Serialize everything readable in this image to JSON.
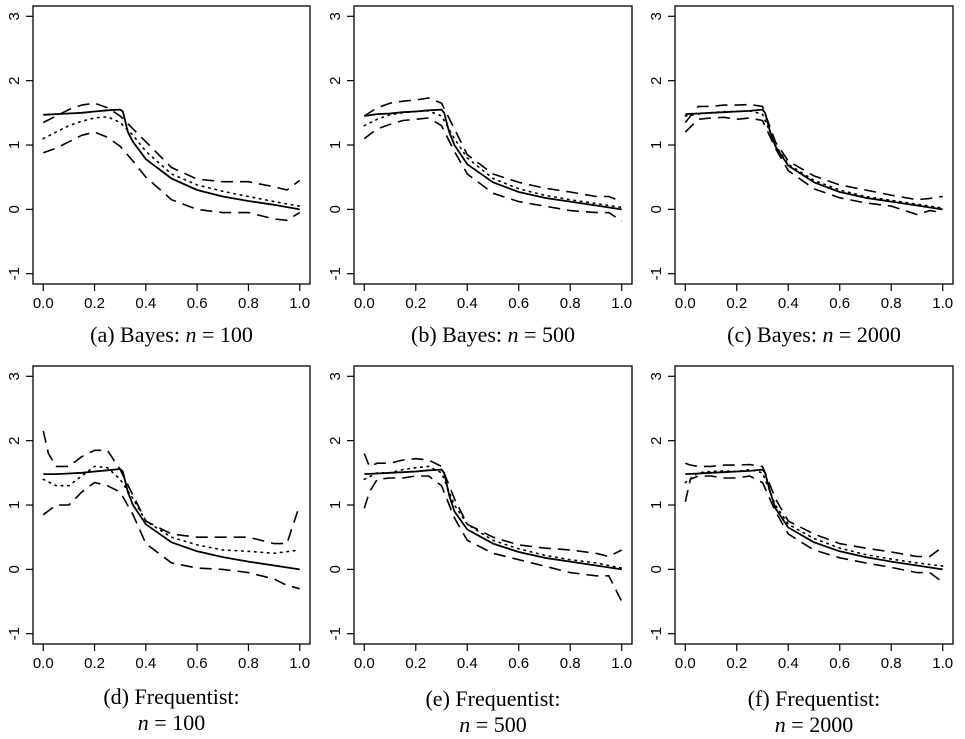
{
  "chart_data": [
    {
      "type": "line",
      "panel": "a",
      "caption_lines": [
        [
          "(a) Bayes: ",
          "n",
          " = 100"
        ]
      ],
      "xlim": [
        0,
        1
      ],
      "ylim": [
        -1,
        3
      ],
      "xticks": [
        "0.0",
        "0.2",
        "0.4",
        "0.6",
        "0.8",
        "1.0"
      ],
      "yticks": [
        "-1",
        "0",
        "1",
        "2",
        "3"
      ],
      "series": [
        {
          "style": "solid",
          "x": [
            0,
            0.05,
            0.1,
            0.15,
            0.2,
            0.25,
            0.3,
            0.31,
            0.33,
            0.35,
            0.4,
            0.5,
            0.6,
            0.7,
            0.8,
            0.9,
            1.0
          ],
          "y": [
            1.47,
            1.48,
            1.49,
            1.5,
            1.52,
            1.54,
            1.55,
            1.52,
            1.2,
            1.05,
            0.78,
            0.48,
            0.3,
            0.2,
            0.13,
            0.07,
            0.0
          ]
        },
        {
          "style": "dotted",
          "x": [
            0,
            0.05,
            0.1,
            0.15,
            0.2,
            0.25,
            0.3,
            0.35,
            0.4,
            0.5,
            0.6,
            0.7,
            0.8,
            0.9,
            1.0
          ],
          "y": [
            1.1,
            1.2,
            1.3,
            1.37,
            1.42,
            1.44,
            1.35,
            1.15,
            0.9,
            0.55,
            0.38,
            0.28,
            0.2,
            0.12,
            0.05
          ]
        },
        {
          "style": "dashed",
          "x": [
            0,
            0.05,
            0.1,
            0.15,
            0.2,
            0.25,
            0.3,
            0.35,
            0.4,
            0.5,
            0.6,
            0.7,
            0.8,
            0.9,
            0.95,
            1.0
          ],
          "y": [
            1.35,
            1.45,
            1.55,
            1.62,
            1.65,
            1.58,
            1.45,
            1.25,
            1.05,
            0.65,
            0.47,
            0.43,
            0.43,
            0.35,
            0.3,
            0.45
          ]
        },
        {
          "style": "dashed",
          "x": [
            0,
            0.05,
            0.1,
            0.15,
            0.2,
            0.25,
            0.3,
            0.35,
            0.4,
            0.5,
            0.6,
            0.7,
            0.8,
            0.9,
            0.95,
            1.0
          ],
          "y": [
            0.88,
            0.95,
            1.05,
            1.15,
            1.2,
            1.12,
            0.98,
            0.75,
            0.5,
            0.15,
            0.0,
            -0.05,
            -0.05,
            -0.15,
            -0.17,
            -0.05
          ]
        }
      ]
    },
    {
      "type": "line",
      "panel": "b",
      "caption_lines": [
        [
          "(b) Bayes: ",
          "n",
          " = 500"
        ]
      ],
      "xlim": [
        0,
        1
      ],
      "ylim": [
        -1,
        3
      ],
      "xticks": [
        "0.0",
        "0.2",
        "0.4",
        "0.6",
        "0.8",
        "1.0"
      ],
      "yticks": [
        "-1",
        "0",
        "1",
        "2",
        "3"
      ],
      "series": [
        {
          "style": "solid",
          "x": [
            0,
            0.05,
            0.1,
            0.15,
            0.2,
            0.25,
            0.3,
            0.31,
            0.33,
            0.35,
            0.4,
            0.5,
            0.6,
            0.7,
            0.8,
            0.9,
            1.0
          ],
          "y": [
            1.45,
            1.48,
            1.49,
            1.51,
            1.52,
            1.54,
            1.55,
            1.5,
            1.2,
            1.0,
            0.7,
            0.42,
            0.27,
            0.18,
            0.12,
            0.06,
            0.0
          ]
        },
        {
          "style": "dotted",
          "x": [
            0,
            0.05,
            0.1,
            0.15,
            0.2,
            0.25,
            0.3,
            0.35,
            0.4,
            0.5,
            0.6,
            0.7,
            0.8,
            0.9,
            1.0
          ],
          "y": [
            1.3,
            1.4,
            1.47,
            1.5,
            1.52,
            1.53,
            1.45,
            1.1,
            0.8,
            0.48,
            0.32,
            0.22,
            0.15,
            0.09,
            0.03
          ]
        },
        {
          "style": "dashed",
          "x": [
            0,
            0.05,
            0.1,
            0.15,
            0.2,
            0.25,
            0.3,
            0.35,
            0.4,
            0.5,
            0.6,
            0.7,
            0.8,
            0.9,
            0.95,
            1.0
          ],
          "y": [
            1.45,
            1.58,
            1.65,
            1.68,
            1.7,
            1.73,
            1.65,
            1.25,
            0.85,
            0.55,
            0.42,
            0.33,
            0.27,
            0.2,
            0.2,
            0.12
          ]
        },
        {
          "style": "dashed",
          "x": [
            0,
            0.05,
            0.1,
            0.15,
            0.2,
            0.25,
            0.3,
            0.35,
            0.4,
            0.5,
            0.6,
            0.7,
            0.8,
            0.9,
            0.95,
            1.0
          ],
          "y": [
            1.1,
            1.25,
            1.32,
            1.38,
            1.4,
            1.42,
            1.3,
            0.9,
            0.55,
            0.25,
            0.12,
            0.05,
            -0.02,
            -0.05,
            -0.05,
            -0.18
          ]
        }
      ]
    },
    {
      "type": "line",
      "panel": "c",
      "caption_lines": [
        [
          "(c) Bayes: ",
          "n",
          " = 2000"
        ]
      ],
      "xlim": [
        0,
        1
      ],
      "ylim": [
        -1,
        3
      ],
      "xticks": [
        "0.0",
        "0.2",
        "0.4",
        "0.6",
        "0.8",
        "1.0"
      ],
      "yticks": [
        "-1",
        "0",
        "1",
        "2",
        "3"
      ],
      "series": [
        {
          "style": "solid",
          "x": [
            0,
            0.05,
            0.1,
            0.15,
            0.2,
            0.25,
            0.3,
            0.31,
            0.33,
            0.35,
            0.4,
            0.5,
            0.6,
            0.7,
            0.8,
            0.9,
            1.0
          ],
          "y": [
            1.48,
            1.49,
            1.5,
            1.51,
            1.52,
            1.53,
            1.55,
            1.5,
            1.2,
            0.98,
            0.68,
            0.42,
            0.27,
            0.18,
            0.12,
            0.06,
            0.0
          ]
        },
        {
          "style": "dotted",
          "x": [
            0,
            0.05,
            0.1,
            0.15,
            0.2,
            0.25,
            0.3,
            0.35,
            0.4,
            0.5,
            0.6,
            0.7,
            0.8,
            0.9,
            1.0
          ],
          "y": [
            1.45,
            1.48,
            1.5,
            1.52,
            1.52,
            1.53,
            1.48,
            1.0,
            0.7,
            0.45,
            0.3,
            0.2,
            0.14,
            0.08,
            0.02
          ]
        },
        {
          "style": "dashed",
          "x": [
            0,
            0.05,
            0.1,
            0.15,
            0.2,
            0.25,
            0.3,
            0.35,
            0.4,
            0.5,
            0.6,
            0.7,
            0.8,
            0.9,
            0.95,
            1.0
          ],
          "y": [
            1.35,
            1.6,
            1.6,
            1.62,
            1.62,
            1.63,
            1.6,
            1.05,
            0.75,
            0.52,
            0.38,
            0.3,
            0.22,
            0.15,
            0.17,
            0.2
          ]
        },
        {
          "style": "dashed",
          "x": [
            0,
            0.05,
            0.1,
            0.15,
            0.2,
            0.25,
            0.3,
            0.35,
            0.4,
            0.5,
            0.6,
            0.7,
            0.8,
            0.9,
            0.95,
            1.0
          ],
          "y": [
            1.2,
            1.4,
            1.42,
            1.43,
            1.4,
            1.42,
            1.38,
            0.95,
            0.6,
            0.32,
            0.18,
            0.1,
            0.05,
            -0.08,
            -0.02,
            -0.05
          ]
        }
      ]
    },
    {
      "type": "line",
      "panel": "d",
      "caption_lines": [
        [
          "(d) Frequentist:"
        ],
        [
          "n",
          " = 100"
        ]
      ],
      "xlim": [
        0,
        1
      ],
      "ylim": [
        -1,
        3
      ],
      "xticks": [
        "0.0",
        "0.2",
        "0.4",
        "0.6",
        "0.8",
        "1.0"
      ],
      "yticks": [
        "-1",
        "0",
        "1",
        "2",
        "3"
      ],
      "series": [
        {
          "style": "solid",
          "x": [
            0,
            0.05,
            0.1,
            0.15,
            0.2,
            0.25,
            0.3,
            0.31,
            0.33,
            0.35,
            0.4,
            0.5,
            0.6,
            0.7,
            0.8,
            0.9,
            1.0
          ],
          "y": [
            1.48,
            1.48,
            1.49,
            1.5,
            1.52,
            1.54,
            1.56,
            1.52,
            1.2,
            1.0,
            0.7,
            0.42,
            0.28,
            0.19,
            0.12,
            0.06,
            0.0
          ]
        },
        {
          "style": "dotted",
          "x": [
            0,
            0.05,
            0.1,
            0.15,
            0.2,
            0.25,
            0.3,
            0.35,
            0.4,
            0.5,
            0.6,
            0.7,
            0.8,
            0.9,
            1.0
          ],
          "y": [
            1.4,
            1.3,
            1.3,
            1.45,
            1.6,
            1.58,
            1.4,
            1.1,
            0.75,
            0.5,
            0.38,
            0.3,
            0.28,
            0.25,
            0.3
          ]
        },
        {
          "style": "dashed",
          "x": [
            0,
            0.02,
            0.05,
            0.1,
            0.15,
            0.2,
            0.25,
            0.3,
            0.35,
            0.4,
            0.5,
            0.6,
            0.7,
            0.8,
            0.9,
            0.95,
            1.0
          ],
          "y": [
            2.15,
            1.8,
            1.6,
            1.6,
            1.75,
            1.85,
            1.85,
            1.55,
            1.15,
            0.75,
            0.55,
            0.5,
            0.5,
            0.5,
            0.4,
            0.4,
            1.0
          ]
        },
        {
          "style": "dashed",
          "x": [
            0,
            0.05,
            0.1,
            0.15,
            0.2,
            0.25,
            0.3,
            0.35,
            0.4,
            0.5,
            0.6,
            0.7,
            0.8,
            0.9,
            0.95,
            1.0
          ],
          "y": [
            0.85,
            1.0,
            1.0,
            1.2,
            1.35,
            1.3,
            1.2,
            0.85,
            0.4,
            0.1,
            0.02,
            0.0,
            -0.05,
            -0.15,
            -0.25,
            -0.3
          ]
        }
      ]
    },
    {
      "type": "line",
      "panel": "e",
      "caption_lines": [
        [
          "(e) Frequentist:"
        ],
        [
          "n",
          " = 500"
        ]
      ],
      "xlim": [
        0,
        1
      ],
      "ylim": [
        -1,
        3
      ],
      "xticks": [
        "0.0",
        "0.2",
        "0.4",
        "0.6",
        "0.8",
        "1.0"
      ],
      "yticks": [
        "-1",
        "0",
        "1",
        "2",
        "3"
      ],
      "series": [
        {
          "style": "solid",
          "x": [
            0,
            0.05,
            0.1,
            0.15,
            0.2,
            0.25,
            0.3,
            0.31,
            0.33,
            0.35,
            0.4,
            0.5,
            0.6,
            0.7,
            0.8,
            0.9,
            1.0
          ],
          "y": [
            1.48,
            1.49,
            1.5,
            1.51,
            1.52,
            1.54,
            1.55,
            1.5,
            1.15,
            0.9,
            0.62,
            0.4,
            0.27,
            0.18,
            0.12,
            0.06,
            0.0
          ]
        },
        {
          "style": "dotted",
          "x": [
            0,
            0.05,
            0.1,
            0.15,
            0.2,
            0.25,
            0.3,
            0.35,
            0.4,
            0.5,
            0.6,
            0.7,
            0.8,
            0.9,
            1.0
          ],
          "y": [
            1.4,
            1.5,
            1.5,
            1.55,
            1.58,
            1.6,
            1.5,
            1.0,
            0.7,
            0.45,
            0.32,
            0.22,
            0.15,
            0.1,
            0.02
          ]
        },
        {
          "style": "dashed",
          "x": [
            0,
            0.02,
            0.05,
            0.1,
            0.15,
            0.2,
            0.25,
            0.3,
            0.35,
            0.4,
            0.5,
            0.6,
            0.7,
            0.8,
            0.9,
            0.95,
            1.0
          ],
          "y": [
            1.8,
            1.6,
            1.65,
            1.65,
            1.7,
            1.72,
            1.7,
            1.6,
            1.1,
            0.7,
            0.5,
            0.38,
            0.33,
            0.3,
            0.25,
            0.2,
            0.3
          ]
        },
        {
          "style": "dashed",
          "x": [
            0,
            0.02,
            0.05,
            0.1,
            0.15,
            0.2,
            0.25,
            0.3,
            0.35,
            0.4,
            0.5,
            0.6,
            0.7,
            0.8,
            0.9,
            0.95,
            1.0
          ],
          "y": [
            0.95,
            1.2,
            1.4,
            1.42,
            1.42,
            1.45,
            1.45,
            1.3,
            0.8,
            0.45,
            0.25,
            0.15,
            0.05,
            -0.05,
            -0.1,
            -0.1,
            -0.5
          ]
        }
      ]
    },
    {
      "type": "line",
      "panel": "f",
      "caption_lines": [
        [
          "(f) Frequentist:"
        ],
        [
          "n",
          " = 2000"
        ]
      ],
      "xlim": [
        0,
        1
      ],
      "ylim": [
        -1,
        3
      ],
      "xticks": [
        "0.0",
        "0.2",
        "0.4",
        "0.6",
        "0.8",
        "1.0"
      ],
      "yticks": [
        "-1",
        "0",
        "1",
        "2",
        "3"
      ],
      "series": [
        {
          "style": "solid",
          "x": [
            0,
            0.05,
            0.1,
            0.15,
            0.2,
            0.25,
            0.3,
            0.31,
            0.33,
            0.35,
            0.4,
            0.5,
            0.6,
            0.7,
            0.8,
            0.9,
            1.0
          ],
          "y": [
            1.48,
            1.49,
            1.5,
            1.51,
            1.52,
            1.53,
            1.55,
            1.5,
            1.2,
            0.95,
            0.65,
            0.42,
            0.28,
            0.19,
            0.12,
            0.06,
            0.0
          ]
        },
        {
          "style": "dotted",
          "x": [
            0,
            0.05,
            0.1,
            0.15,
            0.2,
            0.25,
            0.3,
            0.35,
            0.4,
            0.5,
            0.6,
            0.7,
            0.8,
            0.9,
            1.0
          ],
          "y": [
            1.35,
            1.5,
            1.52,
            1.53,
            1.52,
            1.55,
            1.5,
            1.0,
            0.7,
            0.48,
            0.33,
            0.23,
            0.16,
            0.1,
            0.05
          ]
        },
        {
          "style": "dashed",
          "x": [
            0,
            0.02,
            0.05,
            0.1,
            0.15,
            0.2,
            0.25,
            0.3,
            0.35,
            0.4,
            0.5,
            0.6,
            0.7,
            0.8,
            0.9,
            0.95,
            1.0
          ],
          "y": [
            1.65,
            1.62,
            1.6,
            1.6,
            1.62,
            1.62,
            1.63,
            1.6,
            1.1,
            0.75,
            0.55,
            0.4,
            0.33,
            0.27,
            0.2,
            0.2,
            0.35
          ]
        },
        {
          "style": "dashed",
          "x": [
            0,
            0.02,
            0.05,
            0.1,
            0.15,
            0.2,
            0.25,
            0.3,
            0.35,
            0.4,
            0.5,
            0.6,
            0.7,
            0.8,
            0.9,
            0.95,
            1.0
          ],
          "y": [
            1.05,
            1.4,
            1.45,
            1.45,
            1.42,
            1.42,
            1.45,
            1.35,
            0.9,
            0.55,
            0.3,
            0.18,
            0.1,
            0.03,
            -0.05,
            -0.05,
            -0.2
          ]
        }
      ]
    }
  ]
}
